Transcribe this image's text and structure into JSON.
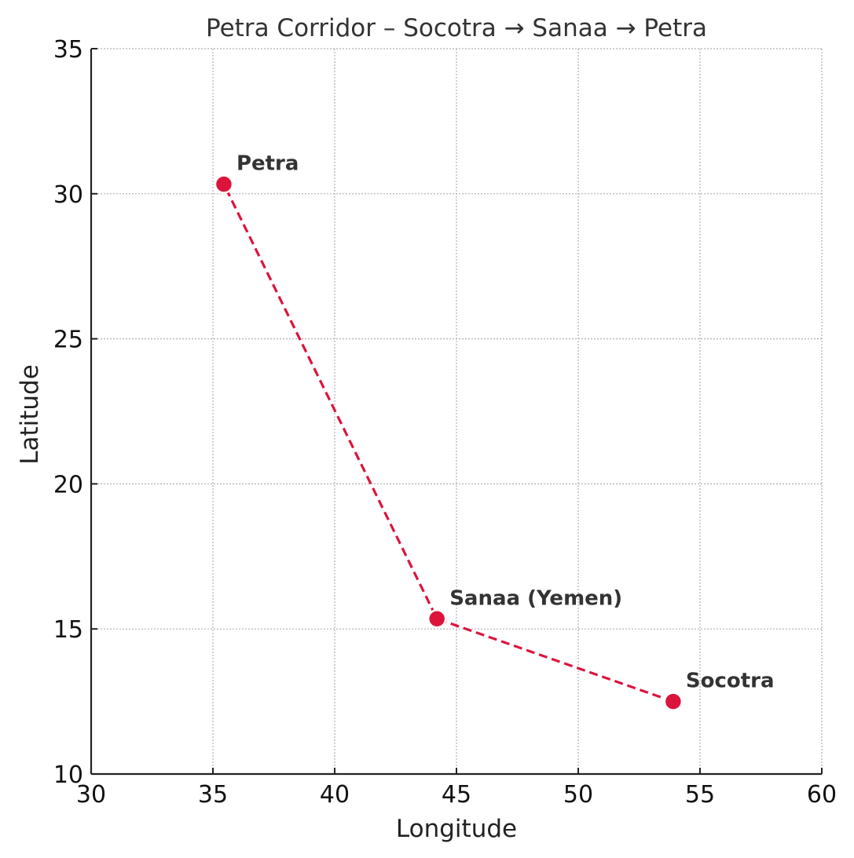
{
  "chart_data": {
    "type": "line",
    "title": "Petra Corridor – Socotra → Sanaa → Petra",
    "xlabel": "Longitude",
    "ylabel": "Latitude",
    "xlim": [
      30,
      60
    ],
    "ylim": [
      10,
      35
    ],
    "xticks": [
      "30",
      "35",
      "40",
      "45",
      "50",
      "55",
      "60"
    ],
    "yticks": [
      "10",
      "15",
      "20",
      "25",
      "30",
      "35"
    ],
    "grid": true,
    "line_style": "dashed",
    "color": "#dc143c",
    "points": [
      {
        "label": "Socotra",
        "x": 53.9,
        "y": 12.5
      },
      {
        "label": "Sanaa (Yemen)",
        "x": 44.2,
        "y": 15.35
      },
      {
        "label": "Petra",
        "x": 35.45,
        "y": 30.33
      }
    ]
  }
}
